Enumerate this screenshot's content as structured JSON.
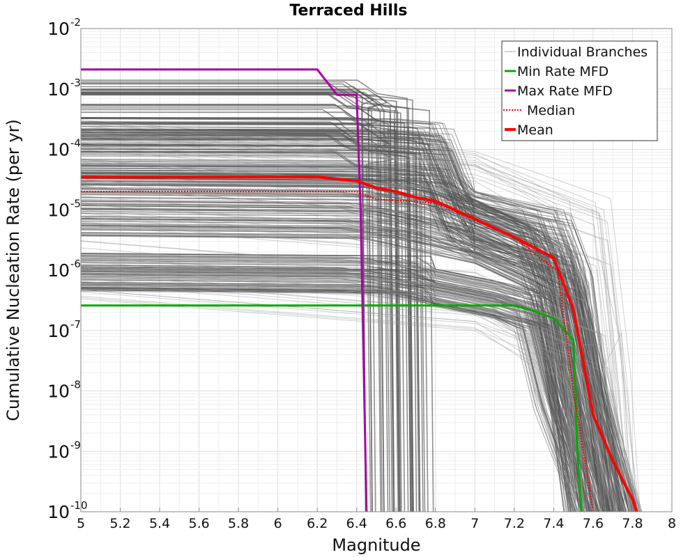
{
  "chart_data": {
    "type": "line",
    "title": "Terraced Hills",
    "xlabel": "Magnitude",
    "ylabel": "Cumulative Nucleation Rate (per yr)",
    "xlim": [
      5,
      8
    ],
    "ylim": [
      1e-10,
      0.01
    ],
    "yscale": "log",
    "grid": true,
    "legend_position": "top-right",
    "x_ticks": [
      5,
      5.2,
      5.4,
      5.6,
      5.8,
      6,
      6.2,
      6.4,
      6.6,
      6.8,
      7,
      7.2,
      7.4,
      7.6,
      7.8,
      8
    ],
    "x_tick_labels": [
      "5",
      "5.2",
      "5.4",
      "5.6",
      "5.8",
      "6",
      "6.2",
      "6.4",
      "6.6",
      "6.8",
      "7",
      "7.2",
      "7.4",
      "7.6",
      "7.8",
      "8"
    ],
    "y_ticks": [
      {
        "base": "10",
        "exp": "-2",
        "value": 0.01
      },
      {
        "base": "10",
        "exp": "-3",
        "value": 0.001
      },
      {
        "base": "10",
        "exp": "-4",
        "value": 0.0001
      },
      {
        "base": "10",
        "exp": "-5",
        "value": 1e-05
      },
      {
        "base": "10",
        "exp": "-6",
        "value": 1e-06
      },
      {
        "base": "10",
        "exp": "-7",
        "value": 1e-07
      },
      {
        "base": "10",
        "exp": "-8",
        "value": 1e-08
      },
      {
        "base": "10",
        "exp": "-9",
        "value": 1e-09
      },
      {
        "base": "10",
        "exp": "-10",
        "value": 1e-10
      }
    ],
    "series": [
      {
        "name": "Min Rate MFD",
        "color": "#00aa00",
        "style": "solid",
        "points": [
          [
            5.0,
            2.6e-07
          ],
          [
            7.2,
            2.6e-07
          ],
          [
            7.3,
            2.1e-07
          ],
          [
            7.4,
            1.6e-07
          ],
          [
            7.5,
            7e-08
          ],
          [
            7.52,
            1e-09
          ],
          [
            7.54,
            1e-10
          ]
        ]
      },
      {
        "name": "Max Rate MFD",
        "color": "#aa00aa",
        "style": "solid",
        "points": [
          [
            5.0,
            0.0021
          ],
          [
            6.2,
            0.0021
          ],
          [
            6.3,
            0.0008
          ],
          [
            6.4,
            0.0008
          ],
          [
            6.42,
            1e-05
          ],
          [
            6.45,
            1e-10
          ]
        ]
      },
      {
        "name": "Median",
        "color": "#ff0000",
        "style": "dotted",
        "points": [
          [
            5.0,
            2e-05
          ],
          [
            6.4,
            2e-05
          ],
          [
            6.5,
            1.5e-05
          ],
          [
            6.8,
            1.3e-05
          ],
          [
            7.2,
            3.5e-06
          ],
          [
            7.38,
            1.2e-06
          ],
          [
            7.42,
            1e-06
          ],
          [
            7.5,
            1e-08
          ],
          [
            7.55,
            1e-09
          ],
          [
            7.6,
            1e-10
          ]
        ]
      },
      {
        "name": "Mean",
        "color": "#ff0000",
        "style": "solid-thick",
        "points": [
          [
            5.0,
            3.5e-05
          ],
          [
            6.2,
            3.5e-05
          ],
          [
            6.4,
            3e-05
          ],
          [
            6.5,
            2.3e-05
          ],
          [
            6.6,
            2e-05
          ],
          [
            6.7,
            1.6e-05
          ],
          [
            6.8,
            1.4e-05
          ],
          [
            7.0,
            7e-06
          ],
          [
            7.2,
            3.5e-06
          ],
          [
            7.4,
            1.6e-06
          ],
          [
            7.5,
            2.2e-07
          ],
          [
            7.6,
            4e-09
          ],
          [
            7.7,
            7e-10
          ],
          [
            7.8,
            1.6e-10
          ],
          [
            7.82,
            1e-10
          ]
        ]
      }
    ],
    "background_series_label": "Individual Branches",
    "legend": [
      {
        "label": "Individual Branches",
        "color": "#aaaaaa",
        "style": "thin"
      },
      {
        "label": "Min Rate MFD",
        "color": "#00aa00",
        "style": "solid"
      },
      {
        "label": "Max Rate MFD",
        "color": "#aa00aa",
        "style": "solid"
      },
      {
        "label": "Median",
        "color": "#ff0000",
        "style": "dotted"
      },
      {
        "label": "Mean",
        "color": "#ff0000",
        "style": "solid-thick"
      }
    ]
  }
}
